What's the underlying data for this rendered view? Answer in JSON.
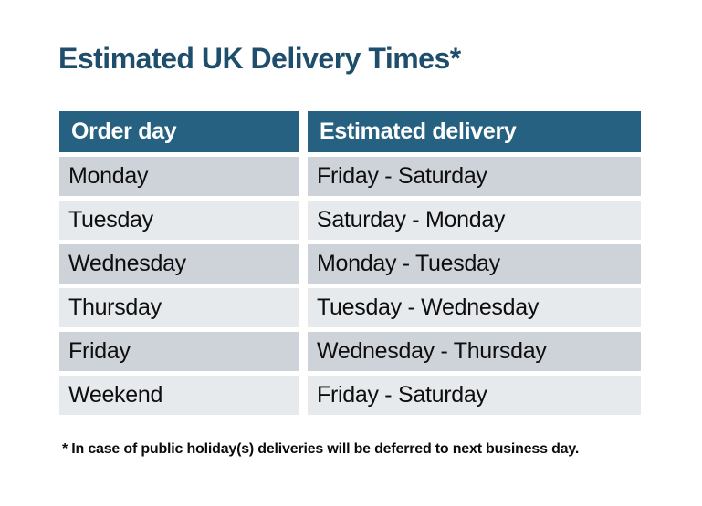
{
  "title": "Estimated UK Delivery Times*",
  "table": {
    "headers": [
      "Order day",
      "Estimated delivery"
    ],
    "rows": [
      [
        "Monday",
        "Friday - Saturday"
      ],
      [
        "Tuesday",
        "Saturday - Monday"
      ],
      [
        "Wednesday",
        "Monday - Tuesday"
      ],
      [
        "Thursday",
        "Tuesday - Wednesday"
      ],
      [
        "Friday",
        "Wednesday - Thursday"
      ],
      [
        "Weekend",
        "Friday - Saturday"
      ]
    ]
  },
  "footnote": "* In case of public holiday(s) deliveries will be deferred to next business day.",
  "colors": {
    "background": "#ffffff",
    "title_text": "#1e4e6b",
    "header_bg": "#266181",
    "header_text": "#ffffff",
    "row_dark_bg": "#ced3da",
    "row_light_bg": "#e7eaed",
    "cell_text": "#0e0e0e",
    "footnote_text": "#0b0b0b"
  }
}
